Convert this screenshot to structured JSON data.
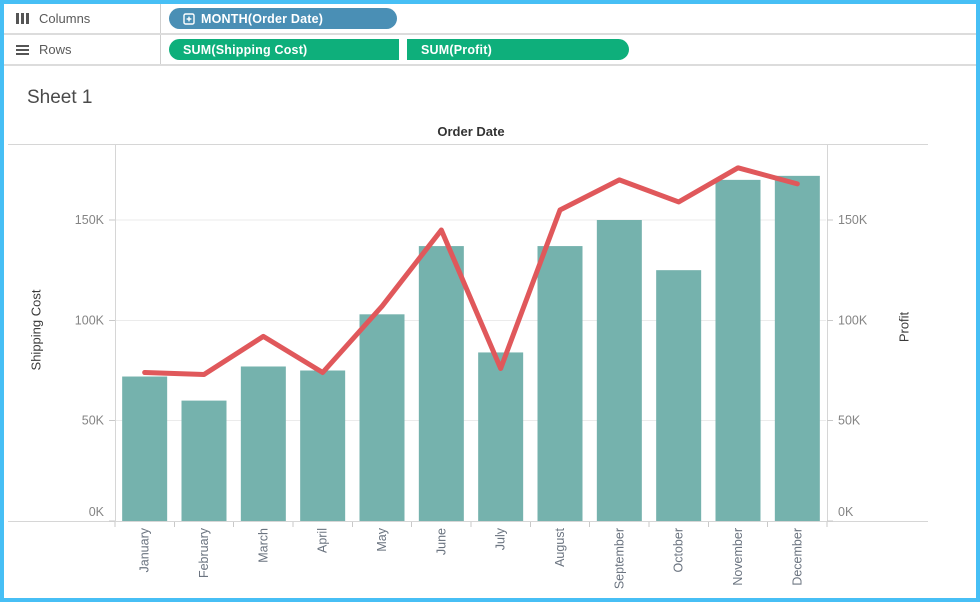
{
  "window": {
    "border_color": "#47BFF5"
  },
  "shelves": {
    "columns": {
      "label": "Columns",
      "pills": [
        {
          "text": "MONTH(Order Date)",
          "color": "#4A8FB5",
          "icon": "plus-box-icon"
        }
      ]
    },
    "rows": {
      "label": "Rows",
      "pills": [
        {
          "text": "SUM(Shipping Cost)",
          "color": "#0EAF7B"
        },
        {
          "text": "SUM(Profit)",
          "color": "#0EAF7B"
        }
      ]
    }
  },
  "sheet": {
    "title": "Sheet 1"
  },
  "chart_data": {
    "type": "bar",
    "subtype": "dual-axis bar and line",
    "title": "Order Date",
    "unit": "thousands (K)",
    "categories": [
      "January",
      "February",
      "March",
      "April",
      "May",
      "June",
      "July",
      "August",
      "September",
      "October",
      "November",
      "December"
    ],
    "series": [
      {
        "name": "SUM(Shipping Cost)",
        "mark": "bar",
        "axis": "left",
        "color": "#75B2AD",
        "values": [
          72,
          60,
          77,
          75,
          103,
          137,
          84,
          137,
          150,
          125,
          170,
          172
        ]
      },
      {
        "name": "SUM(Profit)",
        "mark": "line",
        "axis": "right",
        "color": "#E0585B",
        "values": [
          74,
          73,
          92,
          74,
          107,
          145,
          76,
          155,
          170,
          159,
          176,
          168
        ]
      }
    ],
    "left_axis": {
      "label": "Shipping Cost",
      "tick_values": [
        0,
        50,
        100,
        150
      ],
      "tick_labels": [
        "0K",
        "50K",
        "100K",
        "150K"
      ],
      "range": [
        0,
        188
      ]
    },
    "right_axis": {
      "label": "Profit",
      "tick_values": [
        0,
        50,
        100,
        150
      ],
      "tick_labels": [
        "0K",
        "50K",
        "100K",
        "150K"
      ],
      "range": [
        0,
        188
      ]
    },
    "grid": "horizontal gridlines every 50K",
    "legend_position": "none"
  }
}
